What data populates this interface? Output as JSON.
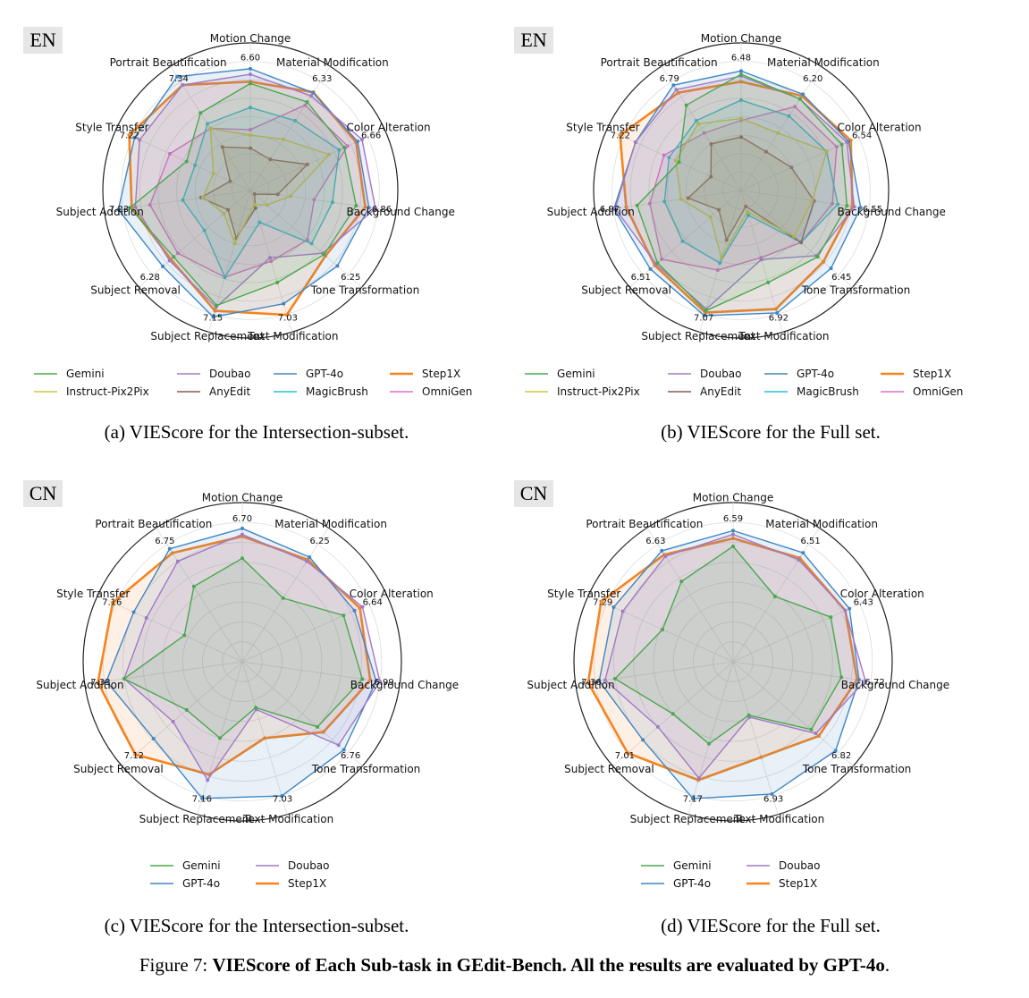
{
  "figure": {
    "caption_prefix": "Figure 7: ",
    "caption_bold": "VIEScore of Each Sub-task in GEdit-Bench. All the results are evaluated by GPT-4o",
    "caption_suffix": "."
  },
  "colors": {
    "Gemini": "#4aa84f",
    "Instruct-Pix2Pix": "#c9cc3f",
    "Doubao": "#a07ac4",
    "AnyEdit": "#8c5a4f",
    "GPT-4o": "#3f86c4",
    "MagicBrush": "#27c0cf",
    "Step1X": "#f5841f",
    "OmniGen": "#e06fcf"
  },
  "chart_data": [
    {
      "type": "radar",
      "panel_tag": "EN",
      "caption": "(a) VIEScore for the Intersection-subset.",
      "axes": [
        "Motion Change",
        "Material Modification",
        "Color Alteration",
        "Background Change",
        "Tone Transformation",
        "Text Modification",
        "Subject Replacement",
        "Subject Removal",
        "Subject Addition",
        "Style Transfer",
        "Portrait Beautification"
      ],
      "rmax": 8,
      "max_labels": [
        "6.60",
        "6.33",
        "6.66",
        "6.86",
        "6.25",
        "7.03",
        "7.15",
        "6.28",
        "7.23",
        "7.22",
        "7.34"
      ],
      "legend_order": [
        "Gemini",
        "Doubao",
        "GPT-4o",
        "Step1X",
        "Instruct-Pix2Pix",
        "AnyEdit",
        "MagicBrush",
        "OmniGen"
      ],
      "series": [
        {
          "name": "Gemini",
          "values": [
            5.8,
            5.7,
            5.6,
            5.8,
            5.3,
            5.2,
            6.5,
            5.5,
            6.6,
            3.8,
            5.0
          ]
        },
        {
          "name": "Doubao",
          "values": [
            6.3,
            6.1,
            6.66,
            6.86,
            5.2,
            3.8,
            6.6,
            5.8,
            6.3,
            6.6,
            6.8
          ]
        },
        {
          "name": "GPT-4o",
          "values": [
            6.6,
            6.3,
            6.4,
            6.5,
            6.25,
            6.4,
            7.15,
            6.28,
            7.23,
            6.9,
            7.34
          ]
        },
        {
          "name": "Step1X",
          "values": [
            5.9,
            6.33,
            6.3,
            6.3,
            5.4,
            7.03,
            6.8,
            5.7,
            6.5,
            7.22,
            6.8
          ]
        },
        {
          "name": "Instruct-Pix2Pix",
          "values": [
            3.0,
            3.3,
            4.7,
            2.2,
            1.2,
            0.8,
            3.0,
            1.9,
            2.6,
            2.2,
            4.0
          ]
        },
        {
          "name": "AnyEdit",
          "values": [
            2.3,
            2.0,
            3.4,
            1.5,
            0.3,
            1.0,
            2.7,
            1.6,
            2.7,
            1.2,
            2.8
          ]
        },
        {
          "name": "MagicBrush",
          "values": [
            4.5,
            4.5,
            5.3,
            4.5,
            4.4,
            1.8,
            4.9,
            3.3,
            3.7,
            3.3,
            4.3
          ]
        },
        {
          "name": "OmniGen",
          "values": [
            3.3,
            5.5,
            5.8,
            3.5,
            4.1,
            4.0,
            4.9,
            5.2,
            5.5,
            4.8,
            4.0
          ]
        }
      ]
    },
    {
      "type": "radar",
      "panel_tag": "EN",
      "caption": "(b) VIEScore for the Full set.",
      "axes": [
        "Motion Change",
        "Material Modification",
        "Color Alteration",
        "Background Change",
        "Tone Transformation",
        "Text Modification",
        "Subject Replacement",
        "Subject Removal",
        "Subject Addition",
        "Style Transfer",
        "Portrait Beautification"
      ],
      "rmax": 8,
      "max_labels": [
        "6.48",
        "6.20",
        "6.54",
        "6.55",
        "6.45",
        "6.92",
        "7.07",
        "6.51",
        "6.97",
        "7.22",
        "6.79"
      ],
      "legend_order": [
        "Gemini",
        "Doubao",
        "GPT-4o",
        "Step1X",
        "Instruct-Pix2Pix",
        "AnyEdit",
        "MagicBrush",
        "OmniGen"
      ],
      "series": [
        {
          "name": "Gemini",
          "values": [
            6.3,
            5.9,
            6.0,
            5.8,
            5.5,
            5.2,
            6.8,
            6.0,
            5.7,
            3.7,
            5.5
          ]
        },
        {
          "name": "Doubao",
          "values": [
            6.2,
            5.9,
            6.3,
            6.2,
            5.4,
            3.9,
            6.7,
            6.1,
            6.9,
            6.3,
            6.5
          ]
        },
        {
          "name": "GPT-4o",
          "values": [
            6.48,
            6.2,
            6.4,
            6.55,
            6.45,
            6.92,
            7.07,
            6.51,
            6.97,
            6.3,
            6.79
          ]
        },
        {
          "name": "Step1X",
          "values": [
            5.9,
            6.1,
            6.54,
            6.1,
            5.9,
            6.7,
            6.9,
            6.2,
            6.3,
            7.22,
            6.3
          ]
        },
        {
          "name": "Instruct-Pix2Pix",
          "values": [
            3.9,
            3.7,
            5.1,
            3.9,
            3.8,
            1.2,
            3.8,
            2.2,
            3.3,
            3.9,
            4.3
          ]
        },
        {
          "name": "AnyEdit",
          "values": [
            2.9,
            2.5,
            3.0,
            4.0,
            4.3,
            0.9,
            2.8,
            1.6,
            2.9,
            1.8,
            3.0
          ]
        },
        {
          "name": "MagicBrush",
          "values": [
            4.9,
            4.8,
            5.1,
            5.3,
            4.3,
            1.4,
            4.1,
            4.2,
            4.2,
            4.3,
            4.5
          ]
        },
        {
          "name": "OmniGen",
          "values": [
            3.8,
            5.4,
            5.7,
            5.0,
            4.3,
            3.8,
            4.5,
            5.7,
            5.0,
            4.6,
            3.7
          ]
        }
      ]
    },
    {
      "type": "radar",
      "panel_tag": "CN",
      "caption": "(c) VIEScore for the Intersection-subset.",
      "axes": [
        "Motion Change",
        "Material Modification",
        "Color Alteration",
        "Background Change",
        "Tone Transformation",
        "Text Modification",
        "Subject Replacement",
        "Subject Removal",
        "Subject Addition",
        "Style Transfer",
        "Portrait Beautification"
      ],
      "rmax": 8,
      "max_labels": [
        "6.70",
        "6.25",
        "6.64",
        "6.99",
        "6.76",
        "7.03",
        "7.16",
        "7.12",
        "7.33",
        "7.16",
        "6.75"
      ],
      "legend_order": [
        "Gemini",
        "Doubao",
        "GPT-4o",
        "Step1X"
      ],
      "series": [
        {
          "name": "Gemini",
          "values": [
            5.2,
            3.8,
            5.6,
            6.1,
            5.0,
            2.4,
            4.0,
            3.7,
            6.0,
            3.2,
            4.5
          ]
        },
        {
          "name": "Doubao",
          "values": [
            6.4,
            6.0,
            6.64,
            6.99,
            6.4,
            2.5,
            6.2,
            4.6,
            6.0,
            5.3,
            6.0
          ]
        },
        {
          "name": "GPT-4o",
          "values": [
            6.7,
            6.25,
            6.2,
            6.8,
            6.76,
            7.03,
            7.16,
            5.9,
            6.9,
            6.0,
            6.75
          ]
        },
        {
          "name": "Step1X",
          "values": [
            6.3,
            6.1,
            6.5,
            6.5,
            5.4,
            4.0,
            5.9,
            7.12,
            7.33,
            7.16,
            6.5
          ]
        }
      ]
    },
    {
      "type": "radar",
      "panel_tag": "CN",
      "caption": "(d) VIEScore for the Full set.",
      "axes": [
        "Motion Change",
        "Material Modification",
        "Color Alteration",
        "Background Change",
        "Tone Transformation",
        "Text Modification",
        "Subject Replacement",
        "Subject Removal",
        "Subject Addition",
        "Style Transfer",
        "Portrait Beautification"
      ],
      "rmax": 8,
      "max_labels": [
        "6.59",
        "6.51",
        "6.43",
        "6.72",
        "6.82",
        "6.93",
        "7.17",
        "7.01",
        "7.36",
        "7.29",
        "6.63"
      ],
      "legend_order": [
        "Gemini",
        "Doubao",
        "GPT-4o",
        "Step1X"
      ],
      "series": [
        {
          "name": "Gemini",
          "values": [
            5.8,
            3.9,
            5.4,
            5.5,
            5.2,
            2.8,
            4.3,
            4.0,
            6.0,
            3.9,
            4.8
          ]
        },
        {
          "name": "Doubao",
          "values": [
            6.4,
            6.1,
            6.2,
            6.72,
            5.5,
            2.9,
            6.1,
            5.0,
            6.5,
            6.1,
            6.3
          ]
        },
        {
          "name": "GPT-4o",
          "values": [
            6.59,
            6.51,
            6.43,
            6.4,
            6.82,
            6.93,
            7.17,
            6.0,
            6.8,
            6.6,
            6.63
          ]
        },
        {
          "name": "Step1X",
          "values": [
            6.2,
            6.2,
            6.2,
            6.3,
            5.7,
            5.0,
            6.2,
            7.01,
            7.36,
            7.29,
            6.4
          ]
        }
      ]
    }
  ]
}
